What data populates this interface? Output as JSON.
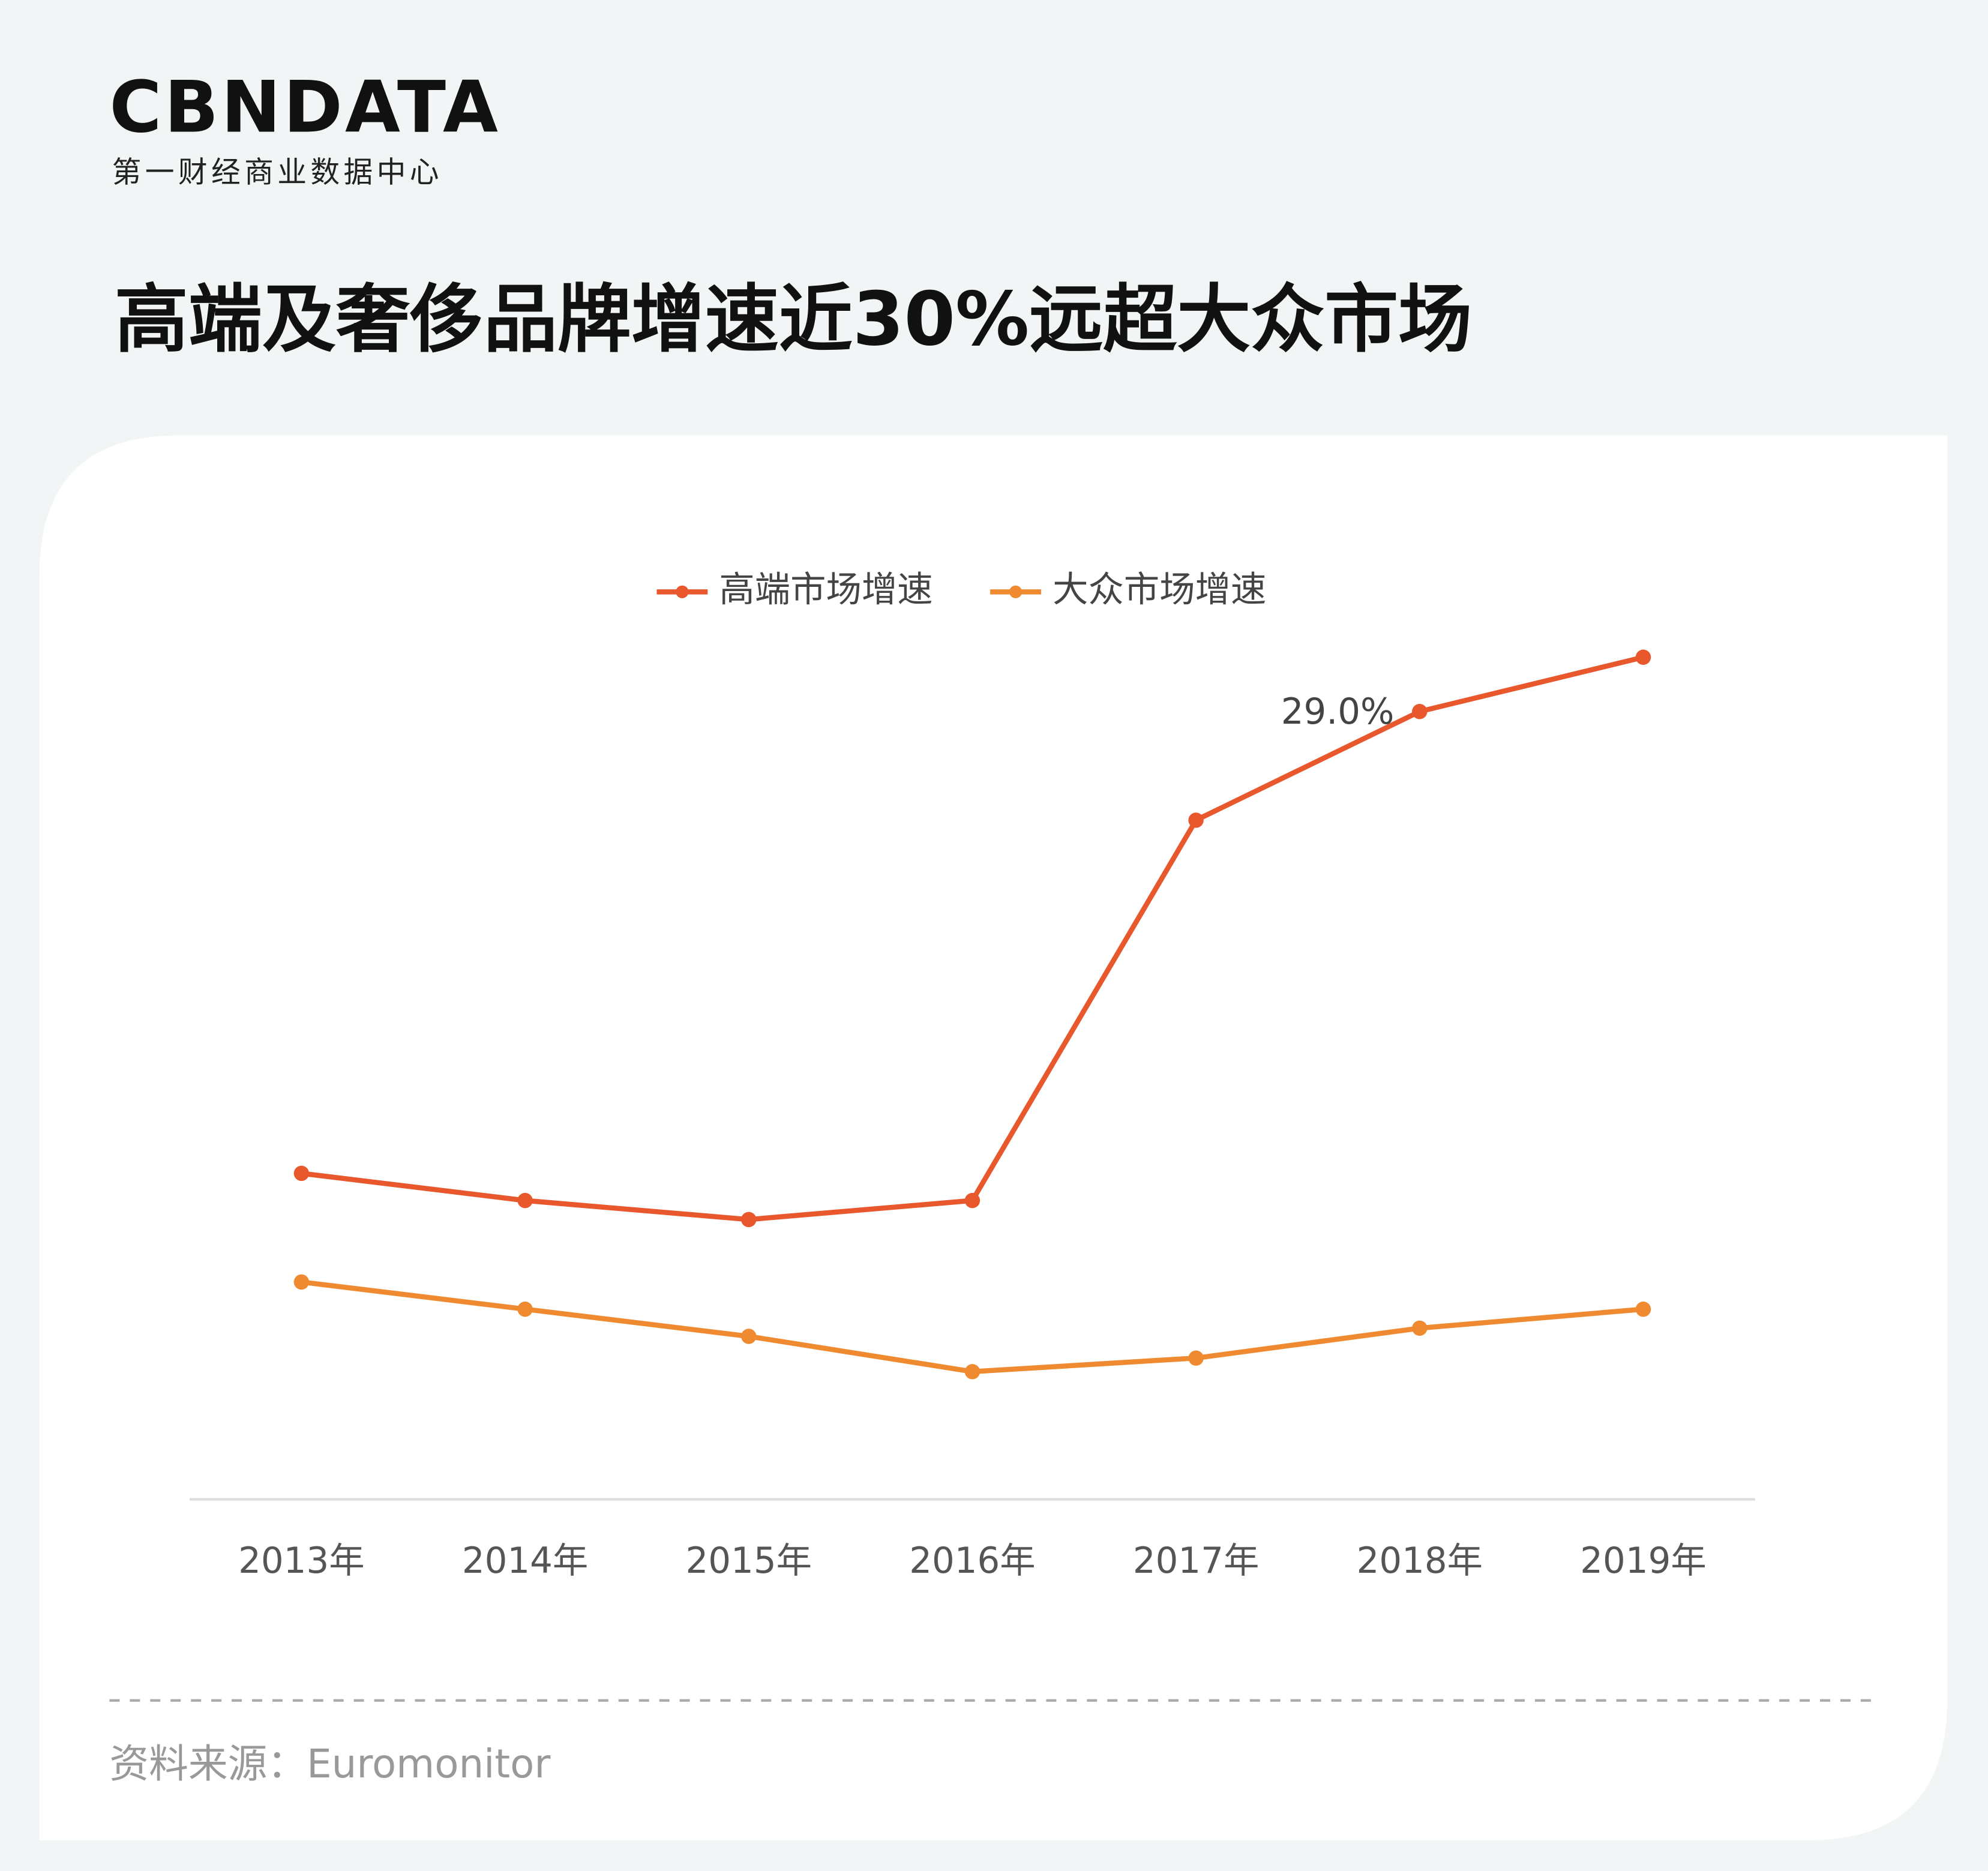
{
  "logo": "CBNDATA",
  "logo_subtitle": "第一财经商业数据中心",
  "chart_data": {
    "type": "line",
    "title": "高端及奢侈品牌增速近30%远超大众市场",
    "categories": [
      "2013年",
      "2014年",
      "2015年",
      "2016年",
      "2017年",
      "2018年",
      "2019年"
    ],
    "series": [
      {
        "name": "高端市场增速",
        "color": "#e8582c",
        "values": [
          12.0,
          11.0,
          10.3,
          11.0,
          25.0,
          29.0,
          31.0
        ],
        "value_labels": [
          null,
          null,
          null,
          null,
          null,
          "29.0%",
          null
        ]
      },
      {
        "name": "大众市场增速",
        "color": "#f08a30",
        "values": [
          8.0,
          7.0,
          6.0,
          4.7,
          5.2,
          6.3,
          7.0
        ]
      }
    ],
    "ylim": [
      0,
      32
    ],
    "grid": false,
    "legend": "top",
    "source": "资料来源：Euromonitor"
  }
}
